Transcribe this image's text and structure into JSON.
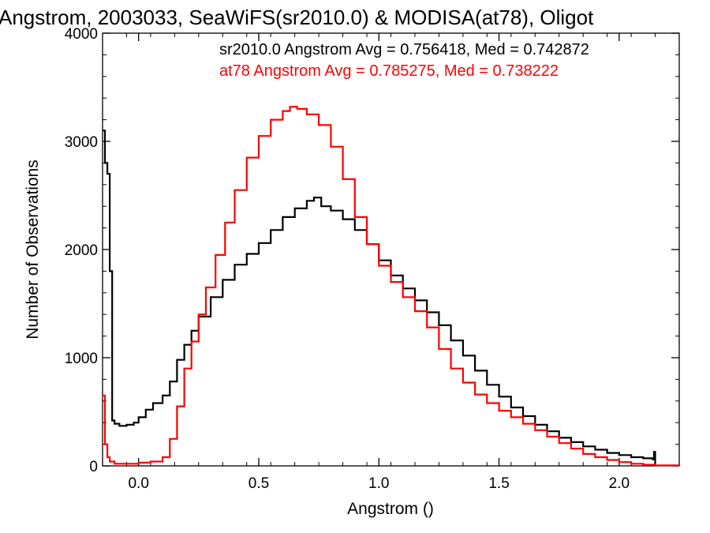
{
  "chart_data": {
    "type": "line",
    "title": "Angstrom, 2003033, SeaWiFS(sr2010.0) & MODISA(at78), Oligot",
    "xlabel": "Angstrom ()",
    "ylabel": "Number of Observations",
    "xlim": [
      -0.15,
      2.25
    ],
    "ylim": [
      0,
      4000
    ],
    "xticks": [
      {
        "value": 0.0,
        "label": "0.0"
      },
      {
        "value": 0.5,
        "label": "0.5"
      },
      {
        "value": 1.0,
        "label": "1.0"
      },
      {
        "value": 1.5,
        "label": "1.5"
      },
      {
        "value": 2.0,
        "label": "2.0"
      }
    ],
    "yticks": [
      {
        "value": 0,
        "label": "0"
      },
      {
        "value": 1000,
        "label": "1000"
      },
      {
        "value": 2000,
        "label": "2000"
      },
      {
        "value": 3000,
        "label": "3000"
      },
      {
        "value": 4000,
        "label": "4000"
      }
    ],
    "grid": false,
    "plot_style": "step",
    "annotations": [
      {
        "text": "sr2010.0 Angstrom Avg = 0.756418, Med = 0.742872",
        "color": "#000000"
      },
      {
        "text": "at78 Angstrom Avg = 0.785275, Med = 0.738222",
        "color": "#ff0000"
      }
    ],
    "series": [
      {
        "color": "#000000",
        "x": [
          -0.15,
          -0.14,
          -0.13,
          -0.12,
          -0.11,
          -0.1,
          -0.08,
          -0.05,
          -0.02,
          0.0,
          0.03,
          0.06,
          0.1,
          0.13,
          0.16,
          0.19,
          0.22,
          0.25,
          0.3,
          0.35,
          0.4,
          0.45,
          0.5,
          0.55,
          0.6,
          0.65,
          0.7,
          0.73,
          0.76,
          0.8,
          0.85,
          0.9,
          0.95,
          1.0,
          1.05,
          1.1,
          1.15,
          1.2,
          1.25,
          1.3,
          1.35,
          1.4,
          1.45,
          1.5,
          1.55,
          1.6,
          1.65,
          1.7,
          1.75,
          1.8,
          1.85,
          1.9,
          1.95,
          2.0,
          2.05,
          2.1,
          2.14,
          2.145,
          2.15
        ],
        "values": [
          3100,
          2800,
          2700,
          1800,
          420,
          390,
          370,
          380,
          400,
          450,
          520,
          580,
          650,
          780,
          980,
          1120,
          1250,
          1380,
          1560,
          1720,
          1860,
          1960,
          2060,
          2180,
          2300,
          2380,
          2450,
          2480,
          2400,
          2360,
          2280,
          2180,
          2050,
          1900,
          1760,
          1640,
          1530,
          1420,
          1300,
          1160,
          1020,
          880,
          750,
          640,
          540,
          460,
          380,
          320,
          260,
          220,
          180,
          150,
          120,
          100,
          80,
          70,
          60,
          130,
          0
        ]
      },
      {
        "color": "#ff0000",
        "x": [
          -0.15,
          -0.14,
          -0.13,
          -0.12,
          -0.1,
          -0.05,
          0.0,
          0.05,
          0.1,
          0.13,
          0.16,
          0.19,
          0.22,
          0.25,
          0.28,
          0.32,
          0.36,
          0.4,
          0.45,
          0.5,
          0.55,
          0.6,
          0.63,
          0.66,
          0.7,
          0.75,
          0.8,
          0.85,
          0.9,
          0.95,
          1.0,
          1.05,
          1.1,
          1.15,
          1.2,
          1.25,
          1.3,
          1.35,
          1.4,
          1.45,
          1.5,
          1.55,
          1.6,
          1.65,
          1.7,
          1.75,
          1.8,
          1.85,
          1.9,
          1.95,
          2.0,
          2.05,
          2.1,
          2.15,
          2.25
        ],
        "values": [
          650,
          200,
          80,
          40,
          20,
          20,
          30,
          40,
          80,
          250,
          550,
          900,
          1150,
          1400,
          1650,
          1950,
          2250,
          2550,
          2850,
          3050,
          3200,
          3280,
          3320,
          3300,
          3250,
          3150,
          2950,
          2650,
          2300,
          2050,
          1850,
          1700,
          1560,
          1430,
          1280,
          1080,
          900,
          770,
          660,
          580,
          510,
          450,
          390,
          330,
          270,
          210,
          160,
          110,
          80,
          55,
          35,
          20,
          10,
          5,
          0
        ]
      }
    ]
  }
}
